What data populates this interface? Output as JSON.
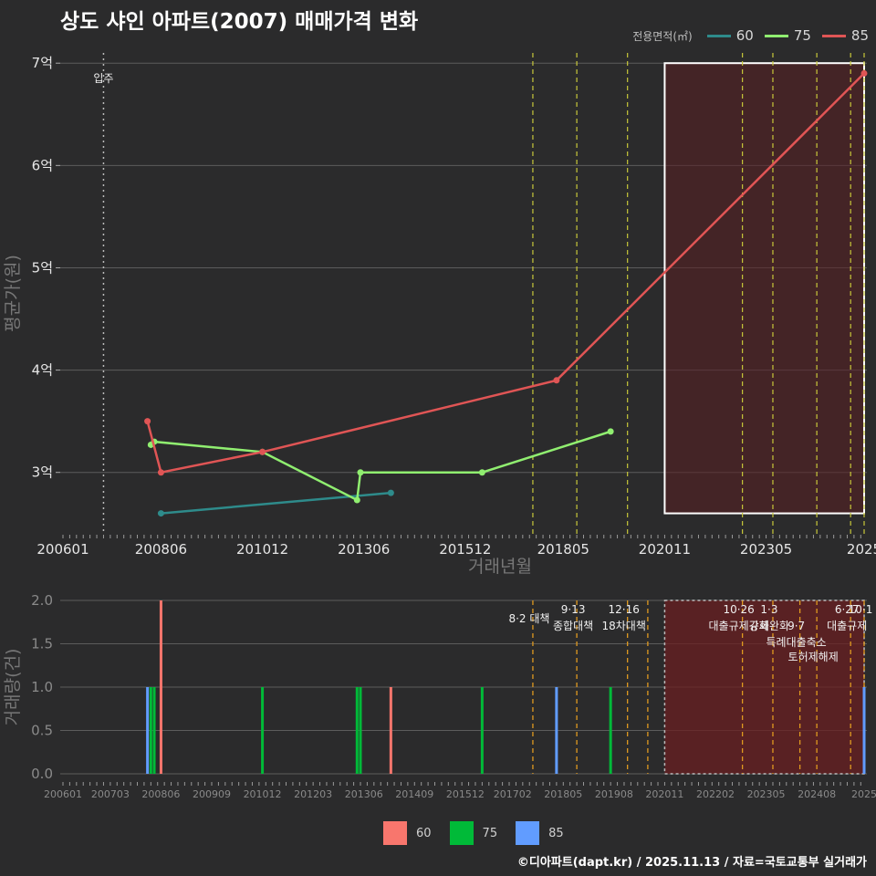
{
  "title": "상도 샤인 아파트(2007) 매매가격 변화",
  "legend": {
    "title": "전용면적(㎡)",
    "items": [
      {
        "label": "60",
        "line_color": "#2e8b8b",
        "bar_color": "#f8766d"
      },
      {
        "label": "75",
        "line_color": "#90ee70",
        "bar_color": "#00ba38"
      },
      {
        "label": "85",
        "line_color": "#e05555",
        "bar_color": "#619cff"
      }
    ]
  },
  "footer": "©디아파트(dapt.kr) / 2025.11.13 / 자료=국토교통부 실거래가",
  "chart_data": [
    {
      "type": "line",
      "title": "상도 샤인 아파트(2007) 매매가격 변화",
      "xlabel": "거래년월",
      "ylabel": "평균가(원)",
      "ylim": [
        2.4,
        7.1
      ],
      "yticks": [
        3,
        4,
        5,
        6,
        7
      ],
      "ytick_labels": [
        "3억",
        "4억",
        "5억",
        "6억",
        "7억"
      ],
      "xlim": [
        "2006-01",
        "2025-10"
      ],
      "xticks": [
        "2006-01",
        "2008-06",
        "2010-12",
        "2013-06",
        "2015-12",
        "2018-05",
        "2020-11",
        "2023-05",
        "2025-10"
      ],
      "xtick_labels": [
        "200601",
        "200806",
        "201012",
        "201306",
        "201512",
        "201805",
        "202011",
        "202305",
        "2025"
      ],
      "series": [
        {
          "name": "60",
          "points": [
            [
              "2008-06",
              2.6
            ],
            [
              "2014-02",
              2.8
            ]
          ]
        },
        {
          "name": "75",
          "points": [
            [
              "2008-03",
              3.27
            ],
            [
              "2008-04",
              3.3
            ],
            [
              "2010-12",
              3.2
            ],
            [
              "2013-04",
              2.73
            ],
            [
              "2013-05",
              3.0
            ],
            [
              "2016-05",
              3.0
            ],
            [
              "2019-07",
              3.4
            ]
          ]
        },
        {
          "name": "85",
          "points": [
            [
              "2008-02",
              3.5
            ],
            [
              "2008-06",
              3.0
            ],
            [
              "2010-12",
              3.2
            ],
            [
              "2018-03",
              3.9
            ],
            [
              "2025-10",
              6.9
            ]
          ]
        }
      ],
      "annotations": {
        "move_in": {
          "label": "입주",
          "x": "2007-01"
        },
        "policy_lines": [
          "2017-08",
          "2018-09",
          "2019-12",
          "2022-10",
          "2023-07",
          "2024-08",
          "2025-06",
          "2025-10"
        ],
        "highlight_range": {
          "x": [
            "2020-11",
            "2025-10"
          ],
          "y": [
            2.6,
            7.0
          ]
        }
      }
    },
    {
      "type": "bar",
      "xlabel": "",
      "ylabel": "거래량(건)",
      "ylim": [
        0,
        2.0
      ],
      "yticks": [
        0.0,
        0.5,
        1.0,
        1.5,
        2.0
      ],
      "ytick_labels": [
        "0.0",
        "0.5",
        "1.0",
        "1.5",
        "2.0"
      ],
      "xticks": [
        "2006-01",
        "2007-03",
        "2008-06",
        "2009-09",
        "2010-12",
        "2012-03",
        "2013-06",
        "2014-09",
        "2015-12",
        "2017-02",
        "2018-05",
        "2019-08",
        "2020-11",
        "2022-02",
        "2023-05",
        "2024-08",
        "2025-10"
      ],
      "xtick_labels": [
        "200601",
        "200703",
        "200806",
        "200909",
        "201012",
        "201203",
        "201306",
        "201409",
        "201512",
        "201702",
        "201805",
        "201908",
        "202011",
        "202202",
        "202305",
        "202408",
        "2025"
      ],
      "bars": [
        {
          "x": "2008-02",
          "series": "85",
          "value": 1
        },
        {
          "x": "2008-03",
          "series": "75",
          "value": 1
        },
        {
          "x": "2008-04",
          "series": "75",
          "value": 1
        },
        {
          "x": "2008-06",
          "series": "60",
          "value": 2
        },
        {
          "x": "2010-12",
          "series": "75",
          "value": 1
        },
        {
          "x": "2013-04",
          "series": "75",
          "value": 1
        },
        {
          "x": "2013-05",
          "series": "75",
          "value": 1
        },
        {
          "x": "2014-02",
          "series": "60",
          "value": 1
        },
        {
          "x": "2016-05",
          "series": "75",
          "value": 1
        },
        {
          "x": "2018-03",
          "series": "85",
          "value": 1
        },
        {
          "x": "2019-07",
          "series": "75",
          "value": 1
        },
        {
          "x": "2025-10",
          "series": "85",
          "value": 1
        }
      ],
      "policy_events": [
        {
          "x": "2017-08",
          "date": "8·2 대책",
          "label": ""
        },
        {
          "x": "2018-09",
          "date": "9·13",
          "label": "종합대책"
        },
        {
          "x": "2019-12",
          "date": "12·16",
          "label": "18차대책"
        },
        {
          "x": "2020-06",
          "date": "",
          "label": ""
        },
        {
          "x": "2022-10",
          "date": "10·26",
          "label": "대출규제강화"
        },
        {
          "x": "2023-07",
          "date": "1·3",
          "label": "규제완화"
        },
        {
          "x": "2024-03",
          "date": "9·7",
          "label": "특례대출축소"
        },
        {
          "x": "2024-08",
          "date": "",
          "label": "토허제해제"
        },
        {
          "x": "2025-06",
          "date": "6·27",
          "label": "대출규제"
        },
        {
          "x": "2025-10",
          "date": "10·1",
          "label": ""
        }
      ],
      "highlight_range": {
        "x": [
          "2020-11",
          "2025-10"
        ],
        "y": [
          0,
          2.0
        ]
      }
    }
  ]
}
